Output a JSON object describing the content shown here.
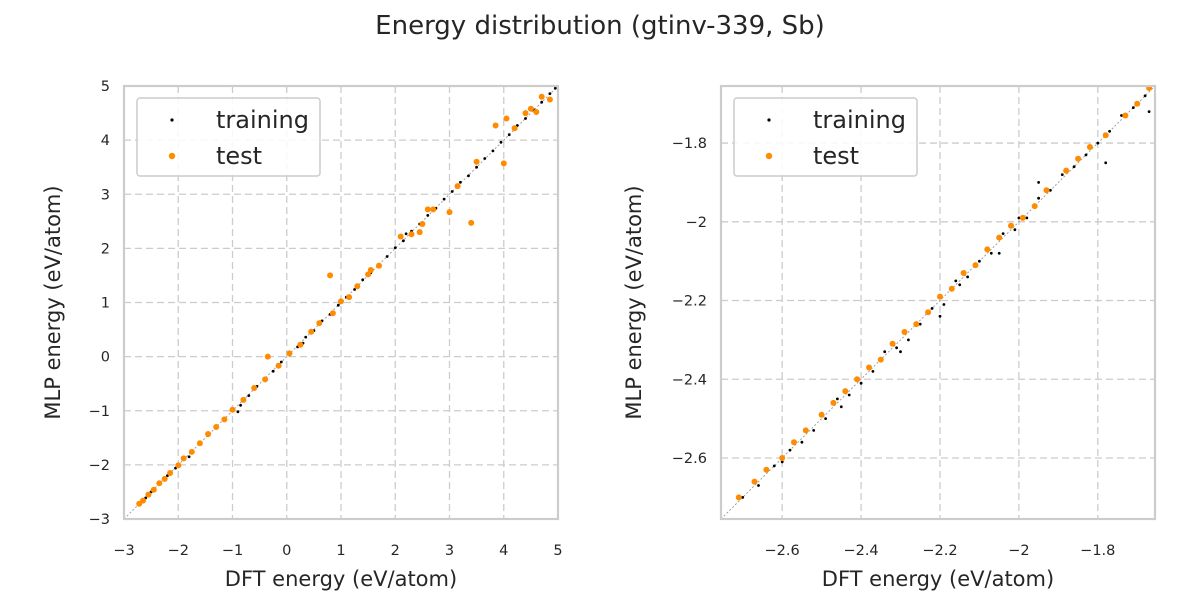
{
  "figure": {
    "suptitle": "Energy distribution (gtinv-339, Sb)"
  },
  "colors": {
    "training": "#000000",
    "test": "#ff8c00",
    "grid": "#cccccc",
    "diagonal": "#999999"
  },
  "chart_data": [
    {
      "type": "scatter",
      "title": "",
      "xlabel": "DFT energy (eV/atom)",
      "ylabel": "MLP energy (eV/atom)",
      "xlim": [
        -3,
        5
      ],
      "ylim": [
        -3,
        5
      ],
      "xticks": [
        -3,
        -2,
        -1,
        0,
        1,
        2,
        3,
        4,
        5
      ],
      "yticks": [
        -3,
        -2,
        -1,
        0,
        1,
        2,
        3,
        4,
        5
      ],
      "grid": true,
      "legend": "top-left",
      "reference_line": "y = x",
      "series": [
        {
          "name": "training",
          "color": "#000000",
          "marker": "small-dot",
          "points": [
            [
              -2.7,
              -2.7
            ],
            [
              -2.6,
              -2.61
            ],
            [
              -2.5,
              -2.5
            ],
            [
              -2.35,
              -2.36
            ],
            [
              -2.2,
              -2.2
            ],
            [
              -2.05,
              -2.06
            ],
            [
              -1.9,
              -1.88
            ],
            [
              -1.75,
              -1.76
            ],
            [
              -1.6,
              -1.6
            ],
            [
              -1.45,
              -1.46
            ],
            [
              -1.3,
              -1.32
            ],
            [
              -1.15,
              -1.14
            ],
            [
              -1.0,
              -1.0
            ],
            [
              -0.85,
              -0.9
            ],
            [
              -0.7,
              -0.72
            ],
            [
              -0.55,
              -0.55
            ],
            [
              -0.4,
              -0.42
            ],
            [
              -0.25,
              -0.27
            ],
            [
              -0.1,
              -0.1
            ],
            [
              0.05,
              0.03
            ],
            [
              0.2,
              0.18
            ],
            [
              0.35,
              0.36
            ],
            [
              0.5,
              0.48
            ],
            [
              0.65,
              0.66
            ],
            [
              0.8,
              0.78
            ],
            [
              0.95,
              0.95
            ],
            [
              1.1,
              1.1
            ],
            [
              1.25,
              1.24
            ],
            [
              1.4,
              1.42
            ],
            [
              1.55,
              1.55
            ],
            [
              1.7,
              1.71
            ],
            [
              1.85,
              1.85
            ],
            [
              2.0,
              2.01
            ],
            [
              2.15,
              2.14
            ],
            [
              2.3,
              2.32
            ],
            [
              2.45,
              2.45
            ],
            [
              2.6,
              2.61
            ],
            [
              2.75,
              2.74
            ],
            [
              2.9,
              2.91
            ],
            [
              3.05,
              3.05
            ],
            [
              3.2,
              3.22
            ],
            [
              3.35,
              3.34
            ],
            [
              3.5,
              3.5
            ],
            [
              3.65,
              3.66
            ],
            [
              3.8,
              3.8
            ],
            [
              3.95,
              3.96
            ],
            [
              4.1,
              4.1
            ],
            [
              4.25,
              4.27
            ],
            [
              4.4,
              4.4
            ],
            [
              4.55,
              4.56
            ],
            [
              4.7,
              4.7
            ],
            [
              4.85,
              4.86
            ],
            [
              4.95,
              4.96
            ],
            [
              -0.9,
              -1.02
            ],
            [
              0.3,
              0.25
            ],
            [
              -1.8,
              -1.85
            ],
            [
              2.2,
              2.27
            ]
          ]
        },
        {
          "name": "test",
          "color": "#ff8c00",
          "marker": "dot",
          "points": [
            [
              -2.72,
              -2.72
            ],
            [
              -2.65,
              -2.66
            ],
            [
              -2.55,
              -2.55
            ],
            [
              -2.45,
              -2.46
            ],
            [
              -2.35,
              -2.34
            ],
            [
              -2.25,
              -2.26
            ],
            [
              -2.15,
              -2.15
            ],
            [
              -2.0,
              -2.01
            ],
            [
              -1.9,
              -1.88
            ],
            [
              -1.75,
              -1.76
            ],
            [
              -1.6,
              -1.6
            ],
            [
              -1.45,
              -1.43
            ],
            [
              -1.3,
              -1.3
            ],
            [
              -1.15,
              -1.16
            ],
            [
              -1.0,
              -0.98
            ],
            [
              -0.8,
              -0.8
            ],
            [
              -0.6,
              -0.58
            ],
            [
              -0.4,
              -0.42
            ],
            [
              -0.35,
              0.0
            ],
            [
              -0.15,
              -0.17
            ],
            [
              0.05,
              0.06
            ],
            [
              0.25,
              0.22
            ],
            [
              0.45,
              0.46
            ],
            [
              0.6,
              0.62
            ],
            [
              0.8,
              1.5
            ],
            [
              0.85,
              0.8
            ],
            [
              1.0,
              1.02
            ],
            [
              1.15,
              1.1
            ],
            [
              1.3,
              1.3
            ],
            [
              1.5,
              1.52
            ],
            [
              1.55,
              1.6
            ],
            [
              1.7,
              1.68
            ],
            [
              2.1,
              2.22
            ],
            [
              2.3,
              2.26
            ],
            [
              2.45,
              2.3
            ],
            [
              2.5,
              2.45
            ],
            [
              2.6,
              2.72
            ],
            [
              2.7,
              2.72
            ],
            [
              3.0,
              2.67
            ],
            [
              3.15,
              3.15
            ],
            [
              3.4,
              2.47
            ],
            [
              3.5,
              3.6
            ],
            [
              3.85,
              4.27
            ],
            [
              4.0,
              3.57
            ],
            [
              4.05,
              4.4
            ],
            [
              4.2,
              4.22
            ],
            [
              4.4,
              4.5
            ],
            [
              4.5,
              4.58
            ],
            [
              4.6,
              4.52
            ],
            [
              4.7,
              4.8
            ],
            [
              4.85,
              4.75
            ]
          ]
        }
      ]
    },
    {
      "type": "scatter",
      "title": "",
      "xlabel": "DFT energy (eV/atom)",
      "ylabel": "MLP energy (eV/atom)",
      "xlim": [
        -2.755,
        -1.655
      ],
      "ylim": [
        -2.755,
        -1.655
      ],
      "xticks": [
        -2.6,
        -2.4,
        -2.2,
        -2.0,
        -1.8
      ],
      "yticks": [
        -2.6,
        -2.4,
        -2.2,
        -2.0,
        -1.8
      ],
      "grid": true,
      "legend": "top-left",
      "reference_line": "y = x",
      "series": [
        {
          "name": "training",
          "color": "#000000",
          "marker": "small-dot",
          "points": [
            [
              -2.7,
              -2.7
            ],
            [
              -2.66,
              -2.67
            ],
            [
              -2.62,
              -2.62
            ],
            [
              -2.58,
              -2.58
            ],
            [
              -2.55,
              -2.56
            ],
            [
              -2.52,
              -2.53
            ],
            [
              -2.49,
              -2.5
            ],
            [
              -2.46,
              -2.45
            ],
            [
              -2.43,
              -2.44
            ],
            [
              -2.4,
              -2.41
            ],
            [
              -2.37,
              -2.38
            ],
            [
              -2.34,
              -2.33
            ],
            [
              -2.31,
              -2.32
            ],
            [
              -2.28,
              -2.3
            ],
            [
              -2.25,
              -2.26
            ],
            [
              -2.22,
              -2.22
            ],
            [
              -2.19,
              -2.21
            ],
            [
              -2.16,
              -2.15
            ],
            [
              -2.13,
              -2.14
            ],
            [
              -2.1,
              -2.1
            ],
            [
              -2.07,
              -2.08
            ],
            [
              -2.04,
              -2.03
            ],
            [
              -2.01,
              -2.02
            ],
            [
              -1.98,
              -1.99
            ],
            [
              -1.95,
              -1.94
            ],
            [
              -1.92,
              -1.92
            ],
            [
              -1.89,
              -1.88
            ],
            [
              -1.86,
              -1.86
            ],
            [
              -1.83,
              -1.83
            ],
            [
              -1.8,
              -1.8
            ],
            [
              -1.77,
              -1.77
            ],
            [
              -1.74,
              -1.73
            ],
            [
              -1.71,
              -1.71
            ],
            [
              -1.68,
              -1.68
            ],
            [
              -2.45,
              -2.47
            ],
            [
              -2.3,
              -2.33
            ],
            [
              -2.2,
              -2.24
            ],
            [
              -2.05,
              -2.08
            ],
            [
              -2.0,
              -1.99
            ],
            [
              -1.95,
              -1.9
            ],
            [
              -1.78,
              -1.85
            ],
            [
              -2.15,
              -2.16
            ],
            [
              -2.6,
              -2.61
            ],
            [
              -1.67,
              -1.72
            ]
          ]
        },
        {
          "name": "test",
          "color": "#ff8c00",
          "marker": "dot",
          "points": [
            [
              -2.71,
              -2.7
            ],
            [
              -2.67,
              -2.66
            ],
            [
              -2.64,
              -2.63
            ],
            [
              -2.6,
              -2.6
            ],
            [
              -2.57,
              -2.56
            ],
            [
              -2.54,
              -2.53
            ],
            [
              -2.5,
              -2.49
            ],
            [
              -2.47,
              -2.46
            ],
            [
              -2.44,
              -2.43
            ],
            [
              -2.41,
              -2.4
            ],
            [
              -2.38,
              -2.37
            ],
            [
              -2.35,
              -2.35
            ],
            [
              -2.32,
              -2.31
            ],
            [
              -2.29,
              -2.28
            ],
            [
              -2.26,
              -2.26
            ],
            [
              -2.23,
              -2.23
            ],
            [
              -2.2,
              -2.19
            ],
            [
              -2.17,
              -2.17
            ],
            [
              -2.14,
              -2.13
            ],
            [
              -2.11,
              -2.11
            ],
            [
              -2.08,
              -2.07
            ],
            [
              -2.05,
              -2.04
            ],
            [
              -2.02,
              -2.01
            ],
            [
              -1.99,
              -1.99
            ],
            [
              -1.96,
              -1.96
            ],
            [
              -1.93,
              -1.92
            ],
            [
              -1.88,
              -1.87
            ],
            [
              -1.85,
              -1.84
            ],
            [
              -1.82,
              -1.81
            ],
            [
              -1.78,
              -1.78
            ],
            [
              -1.73,
              -1.73
            ],
            [
              -1.7,
              -1.7
            ],
            [
              -1.67,
              -1.66
            ]
          ]
        }
      ]
    }
  ]
}
